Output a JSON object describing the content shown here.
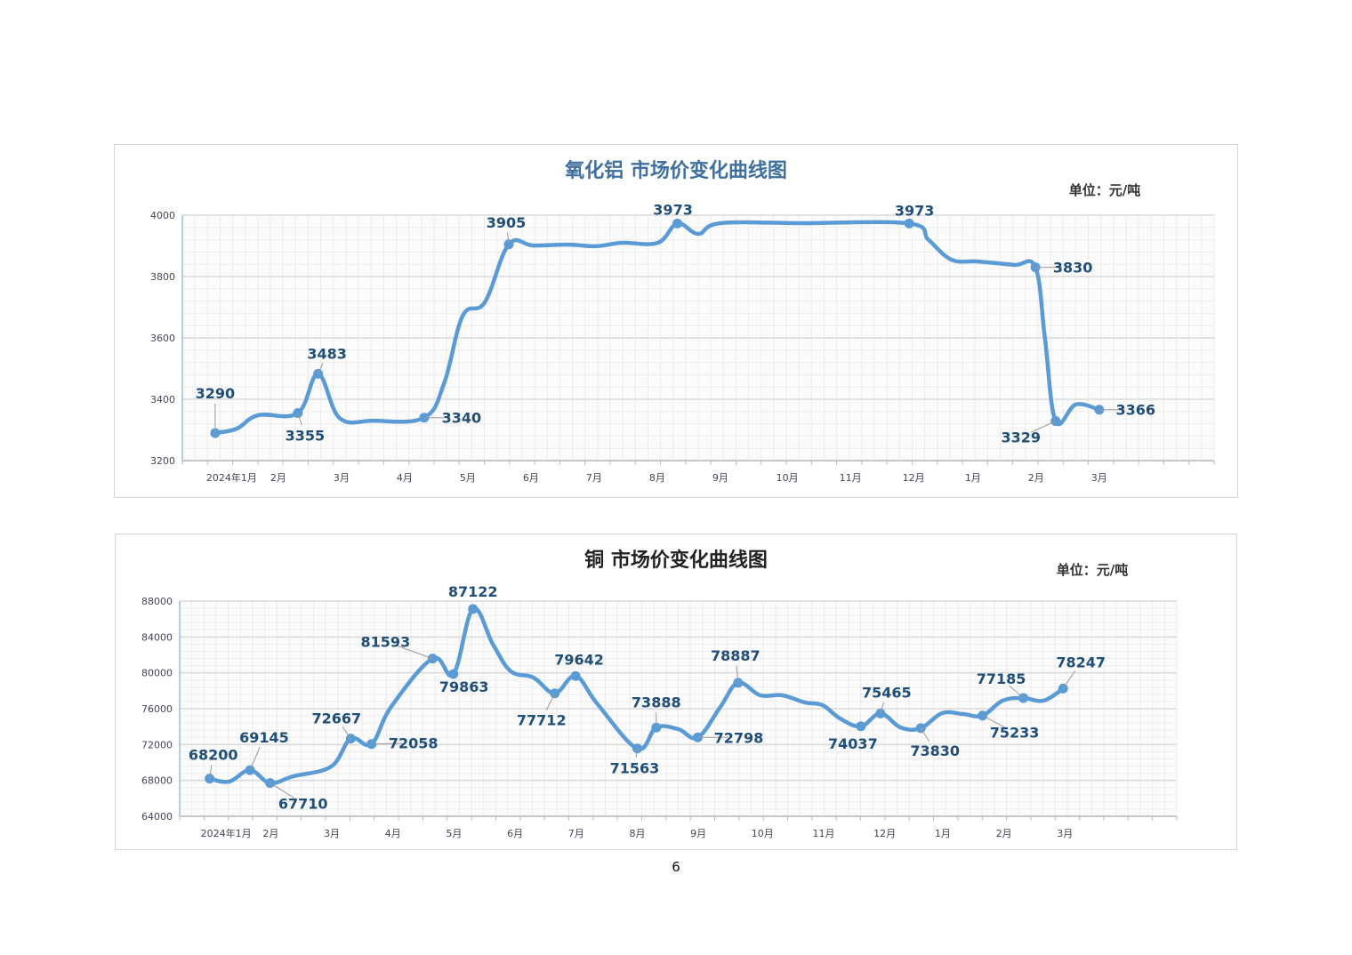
{
  "page_number": "6",
  "colors": {
    "line": "#5b9bd5",
    "label": "#1f4e79",
    "title1": "#3f6f9f",
    "title2": "#222222",
    "grid": "#d9d9d9"
  },
  "chart_data": [
    {
      "type": "line",
      "title": "氧化铝  市场价变化曲线图",
      "unit": "单位：元/吨",
      "xlabel": "",
      "ylabel": "",
      "ylim": [
        3200,
        4000
      ],
      "yticks": [
        3200,
        3400,
        3600,
        3800,
        4000
      ],
      "xlim": [
        -0.52,
        15.82
      ],
      "xticks": [
        {
          "x": 0,
          "label": "2024年1月"
        },
        {
          "x": 1,
          "label": "2月"
        },
        {
          "x": 2,
          "label": "3月"
        },
        {
          "x": 3,
          "label": "4月"
        },
        {
          "x": 4,
          "label": "5月"
        },
        {
          "x": 5,
          "label": "6月"
        },
        {
          "x": 6,
          "label": "7月"
        },
        {
          "x": 7,
          "label": "8月"
        },
        {
          "x": 8,
          "label": "9月"
        },
        {
          "x": 9.06,
          "label": "10月"
        },
        {
          "x": 10.06,
          "label": "11月"
        },
        {
          "x": 11.06,
          "label": "12月"
        },
        {
          "x": 12,
          "label": "1月"
        },
        {
          "x": 13,
          "label": "2月"
        },
        {
          "x": 14,
          "label": "3月"
        }
      ],
      "grid": true,
      "series": [
        {
          "name": "氧化铝",
          "x": [
            0,
            0.34,
            0.68,
            1.31,
            1.63,
            1.97,
            2.5,
            3.31,
            3.63,
            3.92,
            4.27,
            4.65,
            5.04,
            5.6,
            6.03,
            6.45,
            7.01,
            7.32,
            7.65,
            8.0,
            9.27,
            10.99,
            11.3,
            11.66,
            12.08,
            12.65,
            12.99,
            13.14,
            13.31,
            13.63,
            14.0
          ],
          "y": [
            3290,
            3304,
            3348,
            3355,
            3483,
            3339,
            3330,
            3340,
            3455,
            3672,
            3716,
            3905,
            3901,
            3904,
            3899,
            3910,
            3910,
            3973,
            3939,
            3974,
            3974,
            3973,
            3919,
            3855,
            3849,
            3838,
            3830,
            3600,
            3329,
            3383,
            3366
          ]
        }
      ],
      "markers": [
        0,
        3,
        4,
        7,
        11,
        17,
        21,
        26,
        28,
        30
      ],
      "data_labels": [
        {
          "index": 0,
          "text": "3290"
        },
        {
          "index": 3,
          "text": "3355"
        },
        {
          "index": 4,
          "text": "3483"
        },
        {
          "index": 7,
          "text": "3340"
        },
        {
          "index": 11,
          "text": "3905"
        },
        {
          "index": 17,
          "text": "3973"
        },
        {
          "index": 21,
          "text": "3973"
        },
        {
          "index": 26,
          "text": "3830"
        },
        {
          "index": 28,
          "text": "3329"
        },
        {
          "index": 30,
          "text": "3366"
        }
      ]
    },
    {
      "type": "line",
      "title": "铜  市场价变化曲线图",
      "unit": "单位：元/吨",
      "xlabel": "",
      "ylabel": "",
      "ylim": [
        64000,
        88000
      ],
      "yticks": [
        64000,
        68000,
        72000,
        76000,
        80000,
        84000,
        88000
      ],
      "xlim": [
        -0.49,
        15.83
      ],
      "xticks": [
        {
          "x": 0,
          "label": "2024年1月"
        },
        {
          "x": 1,
          "label": "2月"
        },
        {
          "x": 2,
          "label": "3月"
        },
        {
          "x": 3,
          "label": "4月"
        },
        {
          "x": 4,
          "label": "5月"
        },
        {
          "x": 5,
          "label": "6月"
        },
        {
          "x": 6,
          "label": "7月"
        },
        {
          "x": 7,
          "label": "8月"
        },
        {
          "x": 8,
          "label": "9月"
        },
        {
          "x": 9.05,
          "label": "10月"
        },
        {
          "x": 10.05,
          "label": "11月"
        },
        {
          "x": 11.05,
          "label": "12月"
        },
        {
          "x": 12,
          "label": "1月"
        },
        {
          "x": 13,
          "label": "2月"
        },
        {
          "x": 14,
          "label": "3月"
        }
      ],
      "grid": true,
      "series": [
        {
          "name": "铜",
          "x": [
            0,
            0.32,
            0.66,
            0.99,
            1.37,
            1.99,
            2.31,
            2.65,
            2.97,
            3.65,
            3.99,
            4.31,
            4.64,
            4.93,
            5.3,
            5.65,
            5.99,
            6.35,
            7.0,
            7.31,
            7.67,
            7.99,
            8.36,
            8.65,
            9.01,
            9.37,
            9.74,
            10.03,
            10.32,
            10.66,
            10.98,
            11.31,
            11.64,
            11.99,
            12.33,
            12.65,
            12.98,
            13.32,
            13.65,
            13.97
          ],
          "y": [
            68200,
            67869,
            69145,
            67710,
            68464,
            69555,
            72667,
            72058,
            76202,
            81593,
            79863,
            87122,
            83147,
            80171,
            79476,
            77712,
            79642,
            76500,
            71563,
            73888,
            73720,
            72798,
            76200,
            78887,
            77500,
            77500,
            76700,
            76400,
            74900,
            74037,
            75465,
            73900,
            73830,
            75500,
            75400,
            75233,
            76900,
            77185,
            76900,
            78247
          ]
        }
      ],
      "markers": [
        0,
        2,
        3,
        6,
        7,
        9,
        10,
        11,
        15,
        16,
        18,
        19,
        21,
        23,
        29,
        30,
        32,
        35,
        37,
        39
      ],
      "data_labels": [
        {
          "index": 0,
          "text": "68200"
        },
        {
          "index": 2,
          "text": "69145"
        },
        {
          "index": 3,
          "text": "67710"
        },
        {
          "index": 6,
          "text": "72667"
        },
        {
          "index": 7,
          "text": "72058"
        },
        {
          "index": 9,
          "text": "81593"
        },
        {
          "index": 10,
          "text": "79863"
        },
        {
          "index": 11,
          "text": "87122"
        },
        {
          "index": 15,
          "text": "77712"
        },
        {
          "index": 16,
          "text": "79642"
        },
        {
          "index": 18,
          "text": "71563"
        },
        {
          "index": 19,
          "text": "73888"
        },
        {
          "index": 21,
          "text": "72798"
        },
        {
          "index": 23,
          "text": "78887"
        },
        {
          "index": 29,
          "text": "74037"
        },
        {
          "index": 30,
          "text": "75465"
        },
        {
          "index": 32,
          "text": "73830"
        },
        {
          "index": 35,
          "text": "75233"
        },
        {
          "index": 37,
          "text": "77185"
        },
        {
          "index": 39,
          "text": "78247"
        }
      ]
    }
  ]
}
